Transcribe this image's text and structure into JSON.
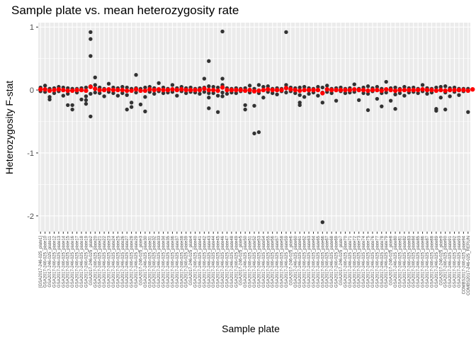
{
  "chart_data": {
    "type": "scatter",
    "title": "Sample plate vs. mean heterozygosity rate",
    "xlabel": "Sample plate",
    "ylabel": "Heterozygosity F-stat",
    "ylim": [
      -2.25,
      1.07
    ],
    "y_ticks": [
      1,
      0,
      -1,
      -2
    ],
    "grid": true,
    "background": "#ebebeb",
    "gridline_color": "#ffffff",
    "point_color": "#333333",
    "mean_color": "#ff0000",
    "categories": [
      "[GSA2017-246-025_plate1]",
      "GSA2017-246-025_plate10",
      "GSA2017-246-025_plate11",
      "GSA2017-246-025_plate12",
      "GSA2017-246-025_plate13",
      "GSA2017-246-025_plate14",
      "GSA2017-246-025_plate15",
      "GSA2017-246-025_plate16",
      "GSA2017-246-025_plate17",
      "GSA2017-246-025_plate18",
      "GSA2017-246-025_plate19",
      "GSA2017-246-025_plate2",
      "GSA2017-246-025_plate20",
      "GSA2017-246-025_plate21",
      "GSA2017-246-025_plate22",
      "GSA2017-246-025_plate23",
      "GSA2017-246-025_plate24",
      "GSA2017-246-025_plate25",
      "GSA2017-246-025_plate26",
      "GSA2017-246-025_plate27",
      "GSA2017-246-025_plate28",
      "GSA2017-246-025_plate29",
      "GSA2017-246-025_plate3",
      "GSA2017-246-025_plate30",
      "GSA2017-246-025_plate31",
      "GSA2017-246-025_plate32",
      "GSA2017-246-025_plate33",
      "GSA2017-246-025_plate34",
      "GSA2017-246-025_plate35",
      "GSA2017-246-025_plate36",
      "GSA2017-246-025_plate37",
      "GSA2017-246-025_plate38",
      "GSA2017-246-025_plate39",
      "GSA2017-246-025_plate4",
      "GSA2017-246-025_plate40",
      "GSA2017-246-025_plate41",
      "GSA2017-246-025_plate42",
      "GSA2017-246-025_plate43",
      "GSA2017-246-025_plate44",
      "GSA2017-246-025_plate45",
      "GSA2017-246-025_plate46",
      "GSA2017-246-025_plate47",
      "GSA2017-246-025_plate48",
      "GSA2017-246-025_plate49",
      "GSA2017-246-025_plate5",
      "GSA2017-246-025_plate50",
      "GSA2017-246-025_plate51",
      "GSA2017-246-025_plate52",
      "GSA2017-246-025_plate53",
      "GSA2017-246-025_plate54",
      "GSA2017-246-025_plate55",
      "GSA2017-246-025_plate56",
      "GSA2017-246-025_plate57",
      "GSA2017-246-025_plate58",
      "GSA2017-246-025_plate59",
      "GSA2017-246-025_plate6",
      "GSA2017-246-025_plate60",
      "GSA2017-246-025_plate61",
      "GSA2017-246-025_plate62",
      "GSA2017-246-025_plate63",
      "GSA2017-246-025_plate64",
      "GSA2017-246-025_plate65",
      "GSA2017-246-025_plate66",
      "GSA2017-246-025_plate67",
      "GSA2017-246-025_plate68",
      "GSA2017-246-025_plate69",
      "GSA2017-246-025_plate7",
      "GSA2017-246-025_plate70",
      "GSA2017-246-025_plate71",
      "GSA2017-246-025_plate72",
      "GSA2017-246-025_plate73",
      "GSA2017-246-025_plate74",
      "GSA2017-246-025_plate75",
      "GSA2017-246-025_plate76",
      "GSA2017-246-025_plate77",
      "GSA2017-246-025_plate78",
      "GSA2017-246-025_plate79",
      "GSA2017-246-025_plate8",
      "GSA2017-246-025_plate80",
      "GSA2017-246-025_plate81",
      "GSA2017-246-025_plate82",
      "GSA2017-246-025_plate83",
      "GSA2017-246-025_plate84",
      "GSA2017-246-025_plate85",
      "GSA2017-246-025_plate86",
      "GSA2017-246-025_plate87",
      "GSA2017-246-025_plate88",
      "GSA2017-246-025_plate89",
      "GSA2017-246-025_plate9",
      "GSA2017-246-025_plate90",
      "GSA2017-246-025_plate91",
      "GSA2017-246-025_plate92",
      "GSA2017-246-025_plate93",
      "COMBS2017-246-025_plate94",
      "COMBS2017-246-025_RERUN"
    ],
    "outliers": [
      {
        "category_index": 0,
        "y": 0.04
      },
      {
        "category_index": 0,
        "y": -0.02
      },
      {
        "category_index": 1,
        "y": 0.07
      },
      {
        "category_index": 1,
        "y": -0.03
      },
      {
        "category_index": 2,
        "y": -0.11
      },
      {
        "category_index": 2,
        "y": -0.15
      },
      {
        "category_index": 2,
        "y": 0.02
      },
      {
        "category_index": 3,
        "y": 0.03
      },
      {
        "category_index": 3,
        "y": -0.05
      },
      {
        "category_index": 4,
        "y": 0.05
      },
      {
        "category_index": 4,
        "y": -0.02
      },
      {
        "category_index": 5,
        "y": -0.09
      },
      {
        "category_index": 5,
        "y": 0.04
      },
      {
        "category_index": 6,
        "y": -0.24
      },
      {
        "category_index": 6,
        "y": 0.03
      },
      {
        "category_index": 6,
        "y": -0.06
      },
      {
        "category_index": 7,
        "y": -0.31
      },
      {
        "category_index": 7,
        "y": -0.24
      },
      {
        "category_index": 7,
        "y": 0.02
      },
      {
        "category_index": 8,
        "y": 0.02
      },
      {
        "category_index": 8,
        "y": -0.04
      },
      {
        "category_index": 9,
        "y": -0.15
      },
      {
        "category_index": 9,
        "y": 0.03
      },
      {
        "category_index": 10,
        "y": -0.1
      },
      {
        "category_index": 10,
        "y": -0.22
      },
      {
        "category_index": 10,
        "y": -0.16
      },
      {
        "category_index": 10,
        "y": 0.04
      },
      {
        "category_index": 11,
        "y": 0.92
      },
      {
        "category_index": 11,
        "y": 0.81
      },
      {
        "category_index": 11,
        "y": 0.54
      },
      {
        "category_index": 11,
        "y": 0.06
      },
      {
        "category_index": 11,
        "y": -0.42
      },
      {
        "category_index": 11,
        "y": -0.06
      },
      {
        "category_index": 12,
        "y": 0.2
      },
      {
        "category_index": 12,
        "y": 0.08
      },
      {
        "category_index": 12,
        "y": -0.04
      },
      {
        "category_index": 13,
        "y": -0.05
      },
      {
        "category_index": 13,
        "y": 0.04
      },
      {
        "category_index": 14,
        "y": -0.1
      },
      {
        "category_index": 14,
        "y": 0.02
      },
      {
        "category_index": 15,
        "y": 0.1
      },
      {
        "category_index": 15,
        "y": -0.03
      },
      {
        "category_index": 16,
        "y": 0.04
      },
      {
        "category_index": 16,
        "y": -0.05
      },
      {
        "category_index": 17,
        "y": 0.03
      },
      {
        "category_index": 17,
        "y": -0.09
      },
      {
        "category_index": 18,
        "y": -0.05
      },
      {
        "category_index": 18,
        "y": 0.05
      },
      {
        "category_index": 19,
        "y": -0.31
      },
      {
        "category_index": 19,
        "y": -0.08
      },
      {
        "category_index": 19,
        "y": 0.04
      },
      {
        "category_index": 20,
        "y": -0.2
      },
      {
        "category_index": 20,
        "y": -0.27
      },
      {
        "category_index": 20,
        "y": 0.02
      },
      {
        "category_index": 21,
        "y": 0.24
      },
      {
        "category_index": 21,
        "y": 0.03
      },
      {
        "category_index": 21,
        "y": -0.04
      },
      {
        "category_index": 22,
        "y": -0.23
      },
      {
        "category_index": 22,
        "y": 0.02
      },
      {
        "category_index": 23,
        "y": -0.34
      },
      {
        "category_index": 23,
        "y": -0.11
      },
      {
        "category_index": 23,
        "y": 0.04
      },
      {
        "category_index": 24,
        "y": -0.03
      },
      {
        "category_index": 24,
        "y": 0.05
      },
      {
        "category_index": 25,
        "y": 0.03
      },
      {
        "category_index": 25,
        "y": -0.06
      },
      {
        "category_index": 26,
        "y": 0.11
      },
      {
        "category_index": 26,
        "y": -0.02
      },
      {
        "category_index": 27,
        "y": 0.04
      },
      {
        "category_index": 27,
        "y": -0.05
      },
      {
        "category_index": 28,
        "y": 0.02
      },
      {
        "category_index": 28,
        "y": -0.04
      },
      {
        "category_index": 29,
        "y": 0.08
      },
      {
        "category_index": 29,
        "y": -0.03
      },
      {
        "category_index": 30,
        "y": -0.09
      },
      {
        "category_index": 30,
        "y": 0.03
      },
      {
        "category_index": 31,
        "y": 0.05
      },
      {
        "category_index": 31,
        "y": -0.02
      },
      {
        "category_index": 32,
        "y": 0.03
      },
      {
        "category_index": 32,
        "y": -0.05
      },
      {
        "category_index": 33,
        "y": 0.04
      },
      {
        "category_index": 33,
        "y": -0.03
      },
      {
        "category_index": 34,
        "y": 0.02
      },
      {
        "category_index": 34,
        "y": -0.04
      },
      {
        "category_index": 35,
        "y": -0.06
      },
      {
        "category_index": 35,
        "y": 0.03
      },
      {
        "category_index": 36,
        "y": 0.18
      },
      {
        "category_index": 36,
        "y": 0.04
      },
      {
        "category_index": 36,
        "y": -0.03
      },
      {
        "category_index": 37,
        "y": 0.46
      },
      {
        "category_index": 37,
        "y": 0.06
      },
      {
        "category_index": 37,
        "y": -0.12
      },
      {
        "category_index": 37,
        "y": -0.29
      },
      {
        "category_index": 37,
        "y": -0.05
      },
      {
        "category_index": 38,
        "y": 0.05
      },
      {
        "category_index": 38,
        "y": -0.05
      },
      {
        "category_index": 39,
        "y": -0.35
      },
      {
        "category_index": 39,
        "y": -0.09
      },
      {
        "category_index": 39,
        "y": 0.04
      },
      {
        "category_index": 40,
        "y": 0.93
      },
      {
        "category_index": 40,
        "y": 0.18
      },
      {
        "category_index": 40,
        "y": 0.08
      },
      {
        "category_index": 40,
        "y": -0.1
      },
      {
        "category_index": 40,
        "y": -0.04
      },
      {
        "category_index": 41,
        "y": 0.03
      },
      {
        "category_index": 41,
        "y": -0.06
      },
      {
        "category_index": 42,
        "y": 0.02
      },
      {
        "category_index": 42,
        "y": -0.04
      },
      {
        "category_index": 43,
        "y": -0.05
      },
      {
        "category_index": 43,
        "y": 0.03
      },
      {
        "category_index": 44,
        "y": -0.02
      },
      {
        "category_index": 44,
        "y": 0.02
      },
      {
        "category_index": 45,
        "y": -0.24
      },
      {
        "category_index": 45,
        "y": -0.31
      },
      {
        "category_index": 45,
        "y": 0.03
      },
      {
        "category_index": 46,
        "y": 0.07
      },
      {
        "category_index": 46,
        "y": -0.04
      },
      {
        "category_index": 47,
        "y": -0.69
      },
      {
        "category_index": 47,
        "y": -0.25
      },
      {
        "category_index": 47,
        "y": 0.02
      },
      {
        "category_index": 48,
        "y": -0.67
      },
      {
        "category_index": 48,
        "y": 0.08
      },
      {
        "category_index": 48,
        "y": -0.05
      },
      {
        "category_index": 49,
        "y": -0.12
      },
      {
        "category_index": 49,
        "y": 0.05
      },
      {
        "category_index": 50,
        "y": 0.06
      },
      {
        "category_index": 50,
        "y": -0.03
      },
      {
        "category_index": 51,
        "y": 0.02
      },
      {
        "category_index": 51,
        "y": -0.05
      },
      {
        "category_index": 52,
        "y": -0.07
      },
      {
        "category_index": 52,
        "y": 0.03
      },
      {
        "category_index": 53,
        "y": 0.02
      },
      {
        "category_index": 53,
        "y": -0.02
      },
      {
        "category_index": 54,
        "y": 0.92
      },
      {
        "category_index": 54,
        "y": 0.08
      },
      {
        "category_index": 54,
        "y": -0.04
      },
      {
        "category_index": 55,
        "y": 0.04
      },
      {
        "category_index": 55,
        "y": -0.02
      },
      {
        "category_index": 56,
        "y": -0.05
      },
      {
        "category_index": 56,
        "y": 0.03
      },
      {
        "category_index": 57,
        "y": -0.2
      },
      {
        "category_index": 57,
        "y": -0.24
      },
      {
        "category_index": 57,
        "y": 0.04
      },
      {
        "category_index": 57,
        "y": -0.08
      },
      {
        "category_index": 58,
        "y": -0.11
      },
      {
        "category_index": 58,
        "y": 0.05
      },
      {
        "category_index": 59,
        "y": 0.03
      },
      {
        "category_index": 59,
        "y": -0.06
      },
      {
        "category_index": 60,
        "y": 0.02
      },
      {
        "category_index": 60,
        "y": -0.04
      },
      {
        "category_index": 61,
        "y": 0.05
      },
      {
        "category_index": 61,
        "y": -0.09
      },
      {
        "category_index": 62,
        "y": -2.1
      },
      {
        "category_index": 62,
        "y": -0.2
      },
      {
        "category_index": 62,
        "y": 0.04
      },
      {
        "category_index": 62,
        "y": -0.04
      },
      {
        "category_index": 63,
        "y": 0.07
      },
      {
        "category_index": 63,
        "y": -0.03
      },
      {
        "category_index": 64,
        "y": 0.02
      },
      {
        "category_index": 64,
        "y": -0.05
      },
      {
        "category_index": 65,
        "y": -0.17
      },
      {
        "category_index": 65,
        "y": 0.03
      },
      {
        "category_index": 66,
        "y": 0.04
      },
      {
        "category_index": 66,
        "y": -0.02
      },
      {
        "category_index": 67,
        "y": -0.05
      },
      {
        "category_index": 67,
        "y": 0.02
      },
      {
        "category_index": 68,
        "y": 0.03
      },
      {
        "category_index": 68,
        "y": -0.04
      },
      {
        "category_index": 69,
        "y": 0.09
      },
      {
        "category_index": 69,
        "y": -0.03
      },
      {
        "category_index": 70,
        "y": -0.16
      },
      {
        "category_index": 70,
        "y": 0.02
      },
      {
        "category_index": 71,
        "y": 0.04
      },
      {
        "category_index": 71,
        "y": -0.05
      },
      {
        "category_index": 72,
        "y": -0.32
      },
      {
        "category_index": 72,
        "y": 0.06
      },
      {
        "category_index": 72,
        "y": -0.06
      },
      {
        "category_index": 73,
        "y": 0.03
      },
      {
        "category_index": 73,
        "y": -0.02
      },
      {
        "category_index": 74,
        "y": -0.14
      },
      {
        "category_index": 74,
        "y": 0.05
      },
      {
        "category_index": 75,
        "y": -0.26
      },
      {
        "category_index": 75,
        "y": 0.02
      },
      {
        "category_index": 75,
        "y": -0.05
      },
      {
        "category_index": 76,
        "y": 0.13
      },
      {
        "category_index": 76,
        "y": -0.04
      },
      {
        "category_index": 77,
        "y": -0.17
      },
      {
        "category_index": 77,
        "y": 0.03
      },
      {
        "category_index": 78,
        "y": -0.3
      },
      {
        "category_index": 78,
        "y": 0.04
      },
      {
        "category_index": 78,
        "y": -0.07
      },
      {
        "category_index": 79,
        "y": -0.05
      },
      {
        "category_index": 79,
        "y": 0.02
      },
      {
        "category_index": 80,
        "y": 0.05
      },
      {
        "category_index": 80,
        "y": -0.09
      },
      {
        "category_index": 81,
        "y": 0.03
      },
      {
        "category_index": 81,
        "y": -0.04
      },
      {
        "category_index": 82,
        "y": -0.03
      },
      {
        "category_index": 82,
        "y": 0.04
      },
      {
        "category_index": 83,
        "y": 0.02
      },
      {
        "category_index": 83,
        "y": -0.05
      },
      {
        "category_index": 84,
        "y": 0.08
      },
      {
        "category_index": 84,
        "y": -0.02
      },
      {
        "category_index": 85,
        "y": 0.03
      },
      {
        "category_index": 85,
        "y": -0.06
      },
      {
        "category_index": 86,
        "y": -0.04
      },
      {
        "category_index": 86,
        "y": 0.02
      },
      {
        "category_index": 87,
        "y": -0.3
      },
      {
        "category_index": 87,
        "y": -0.33
      },
      {
        "category_index": 87,
        "y": 0.04
      },
      {
        "category_index": 88,
        "y": -0.12
      },
      {
        "category_index": 88,
        "y": 0.05
      },
      {
        "category_index": 89,
        "y": -0.31
      },
      {
        "category_index": 89,
        "y": 0.06
      },
      {
        "category_index": 89,
        "y": -0.04
      },
      {
        "category_index": 90,
        "y": -0.1
      },
      {
        "category_index": 90,
        "y": 0.03
      },
      {
        "category_index": 91,
        "y": 0.04
      },
      {
        "category_index": 91,
        "y": -0.03
      },
      {
        "category_index": 92,
        "y": -0.08
      },
      {
        "category_index": 92,
        "y": 0.02
      },
      {
        "category_index": 93,
        "y": 0.02
      },
      {
        "category_index": 93,
        "y": -0.02
      },
      {
        "category_index": 94,
        "y": -0.35
      },
      {
        "category_index": 94,
        "y": 0.02
      },
      {
        "category_index": 95,
        "y": 0.01
      }
    ],
    "means": [
      0.01,
      0.01,
      -0.01,
      0.0,
      0.01,
      0.0,
      -0.01,
      -0.01,
      0.0,
      0.0,
      -0.01,
      0.05,
      0.02,
      0.0,
      0.0,
      0.01,
      0.0,
      0.0,
      0.0,
      -0.01,
      -0.01,
      0.01,
      -0.01,
      -0.01,
      0.01,
      0.0,
      0.01,
      0.0,
      0.0,
      0.01,
      0.0,
      0.01,
      0.0,
      0.0,
      0.0,
      0.0,
      0.02,
      0.0,
      0.0,
      -0.01,
      0.04,
      0.0,
      0.0,
      0.0,
      0.0,
      -0.01,
      0.0,
      -0.02,
      -0.01,
      0.0,
      0.01,
      0.0,
      0.0,
      0.0,
      0.03,
      0.01,
      0.0,
      -0.01,
      0.0,
      0.0,
      0.0,
      0.0,
      -0.05,
      0.01,
      0.0,
      0.0,
      0.0,
      0.0,
      0.0,
      0.01,
      0.0,
      0.0,
      -0.01,
      0.0,
      0.0,
      -0.01,
      0.01,
      0.0,
      -0.01,
      0.0,
      0.0,
      0.0,
      0.0,
      0.0,
      0.01,
      0.0,
      0.0,
      -0.01,
      0.0,
      -0.01,
      0.0,
      0.0,
      0.0,
      0.0,
      -0.01,
      0.01
    ]
  }
}
